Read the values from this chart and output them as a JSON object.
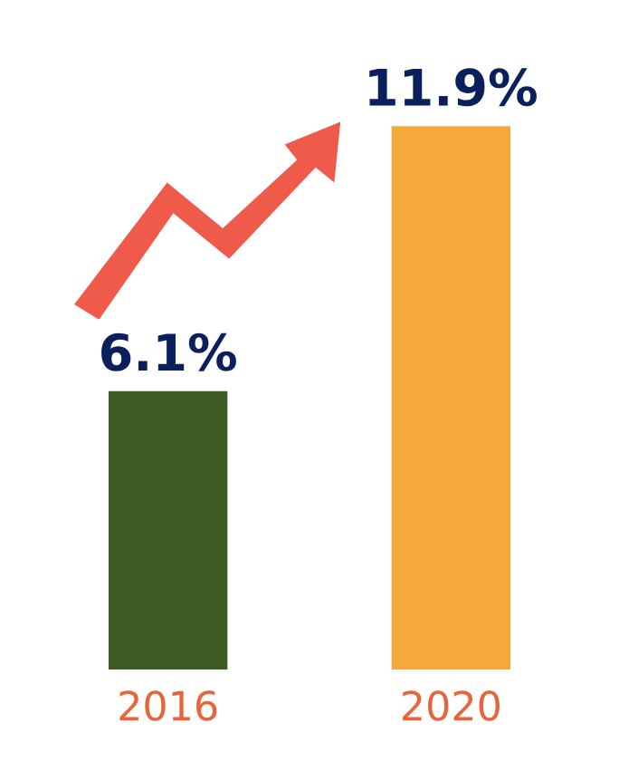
{
  "chart_data": {
    "type": "bar",
    "categories": [
      "2016",
      "2020"
    ],
    "values": [
      6.1,
      11.9
    ],
    "colors": [
      "#3b5a24",
      "#f5a83c"
    ],
    "value_labels": [
      "6.1%",
      "11.9%"
    ]
  }
}
